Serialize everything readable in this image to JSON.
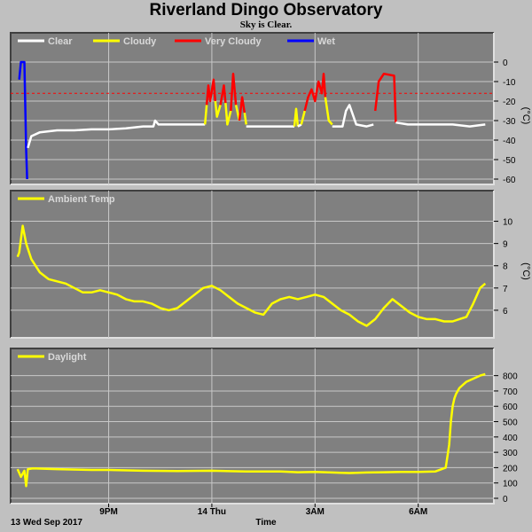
{
  "title": "Riverland Dingo Observatory",
  "subtitle": "Sky is Clear.",
  "date_label": "13 Wed Sep 2017",
  "time_label": "Time",
  "chart_data": [
    {
      "type": "line",
      "id": "sky",
      "unit": "(°C)",
      "ylim": [
        -60,
        5
      ],
      "yticks": [
        0,
        -10,
        -20,
        -30,
        -40,
        -50,
        -60
      ],
      "threshold": -16,
      "threshold_color": "#ff0000",
      "legend": [
        {
          "name": "Clear",
          "color": "#ffffff"
        },
        {
          "name": "Cloudy",
          "color": "#ffff00"
        },
        {
          "name": "Very Cloudy",
          "color": "#ff0000"
        },
        {
          "name": "Wet",
          "color": "#0000ff"
        }
      ],
      "segments": [
        {
          "status": "Wet",
          "color": "#0000ff",
          "points": [
            [
              18.4,
              -9
            ],
            [
              18.45,
              0
            ],
            [
              18.55,
              0
            ],
            [
              18.6,
              -45
            ],
            [
              18.63,
              -60
            ]
          ]
        },
        {
          "status": "Clear",
          "color": "#ffffff",
          "points": [
            [
              18.65,
              -44
            ],
            [
              18.75,
              -38
            ],
            [
              19.0,
              -36
            ],
            [
              19.5,
              -35
            ],
            [
              20.0,
              -35
            ],
            [
              20.5,
              -34.5
            ],
            [
              21.0,
              -34.5
            ],
            [
              21.5,
              -34
            ],
            [
              22.0,
              -33
            ],
            [
              22.3,
              -33
            ],
            [
              22.35,
              -30
            ],
            [
              22.45,
              -32
            ],
            [
              23.0,
              -32
            ],
            [
              23.6,
              -32
            ],
            [
              23.8,
              -32
            ]
          ]
        },
        {
          "status": "Cloudy",
          "color": "#ffff00",
          "points": [
            [
              23.8,
              -32
            ],
            [
              23.85,
              -22
            ]
          ]
        },
        {
          "status": "Very Cloudy",
          "color": "#ff0000",
          "points": [
            [
              23.85,
              -22
            ],
            [
              23.9,
              -12
            ],
            [
              23.95,
              -20
            ],
            [
              24.05,
              -9
            ],
            [
              24.1,
              -20
            ]
          ]
        },
        {
          "status": "Cloudy",
          "color": "#ffff00",
          "points": [
            [
              24.1,
              -20
            ],
            [
              24.15,
              -28
            ],
            [
              24.25,
              -22
            ]
          ]
        },
        {
          "status": "Very Cloudy",
          "color": "#ff0000",
          "points": [
            [
              24.25,
              -22
            ],
            [
              24.35,
              -12
            ],
            [
              24.4,
              -21
            ]
          ]
        },
        {
          "status": "Cloudy",
          "color": "#ffff00",
          "points": [
            [
              24.4,
              -21
            ],
            [
              24.45,
              -32
            ],
            [
              24.55,
              -25
            ]
          ]
        },
        {
          "status": "Very Cloudy",
          "color": "#ff0000",
          "points": [
            [
              24.55,
              -25
            ],
            [
              24.62,
              -6
            ],
            [
              24.7,
              -22
            ]
          ]
        },
        {
          "status": "Cloudy",
          "color": "#ffff00",
          "points": [
            [
              24.7,
              -22
            ],
            [
              24.8,
              -30
            ]
          ]
        },
        {
          "status": "Very Cloudy",
          "color": "#ff0000",
          "points": [
            [
              24.8,
              -30
            ],
            [
              24.88,
              -18
            ],
            [
              24.95,
              -26
            ]
          ]
        },
        {
          "status": "Cloudy",
          "color": "#ffff00",
          "points": [
            [
              24.95,
              -26
            ],
            [
              25.0,
              -32
            ]
          ]
        },
        {
          "status": "Clear",
          "color": "#ffffff",
          "points": [
            [
              25.0,
              -33
            ],
            [
              25.5,
              -33
            ],
            [
              26.0,
              -33
            ],
            [
              26.4,
              -33
            ]
          ]
        },
        {
          "status": "Cloudy",
          "color": "#ffff00",
          "points": [
            [
              26.4,
              -33
            ],
            [
              26.45,
              -24
            ],
            [
              26.5,
              -33
            ]
          ]
        },
        {
          "status": "Clear",
          "color": "#ffffff",
          "points": [
            [
              26.5,
              -33
            ],
            [
              26.6,
              -32
            ]
          ]
        },
        {
          "status": "Cloudy",
          "color": "#ffff00",
          "points": [
            [
              26.6,
              -32
            ],
            [
              26.7,
              -25
            ]
          ]
        },
        {
          "status": "Very Cloudy",
          "color": "#ff0000",
          "points": [
            [
              26.7,
              -25
            ],
            [
              26.8,
              -18
            ],
            [
              26.9,
              -14
            ],
            [
              27.0,
              -20
            ],
            [
              27.1,
              -10
            ],
            [
              27.2,
              -16
            ],
            [
              27.25,
              -6
            ],
            [
              27.3,
              -18
            ]
          ]
        },
        {
          "status": "Cloudy",
          "color": "#ffff00",
          "points": [
            [
              27.3,
              -18
            ],
            [
              27.4,
              -30
            ],
            [
              27.5,
              -32
            ]
          ]
        },
        {
          "status": "Clear",
          "color": "#ffffff",
          "points": [
            [
              27.5,
              -33
            ],
            [
              27.8,
              -33
            ],
            [
              27.9,
              -25
            ],
            [
              28.0,
              -22
            ],
            [
              28.2,
              -32
            ],
            [
              28.5,
              -33
            ],
            [
              28.7,
              -32
            ]
          ]
        },
        {
          "status": "Very Cloudy",
          "color": "#ff0000",
          "points": [
            [
              28.75,
              -25
            ],
            [
              28.85,
              -10
            ],
            [
              29.0,
              -6
            ],
            [
              29.3,
              -7
            ],
            [
              29.35,
              -31
            ]
          ]
        },
        {
          "status": "Clear",
          "color": "#ffffff",
          "points": [
            [
              29.35,
              -31
            ],
            [
              29.7,
              -32
            ],
            [
              30.0,
              -32
            ],
            [
              30.5,
              -32
            ],
            [
              31.0,
              -32
            ],
            [
              31.5,
              -33
            ],
            [
              31.95,
              -32
            ]
          ]
        }
      ]
    },
    {
      "type": "line",
      "id": "ambient",
      "unit": "(°C)",
      "ylim": [
        5,
        10.5
      ],
      "yticks": [
        10,
        9,
        8,
        7,
        6
      ],
      "legend": [
        {
          "name": "Ambient Temp",
          "color": "#ffff00"
        }
      ],
      "x": [
        18.35,
        18.4,
        18.5,
        18.6,
        18.75,
        19.0,
        19.25,
        19.5,
        19.75,
        20.0,
        20.25,
        20.5,
        20.75,
        21.0,
        21.25,
        21.5,
        21.75,
        22.0,
        22.25,
        22.5,
        22.75,
        23.0,
        23.25,
        23.5,
        23.75,
        24.0,
        24.25,
        24.5,
        24.75,
        25.0,
        25.25,
        25.5,
        25.75,
        26.0,
        26.25,
        26.5,
        26.75,
        27.0,
        27.25,
        27.5,
        27.75,
        28.0,
        28.25,
        28.5,
        28.75,
        29.0,
        29.25,
        29.5,
        29.75,
        30.0,
        30.25,
        30.5,
        30.75,
        31.0,
        31.2,
        31.4,
        31.6,
        31.8,
        31.95
      ],
      "y": [
        8.4,
        8.6,
        9.8,
        9.0,
        8.3,
        7.7,
        7.4,
        7.3,
        7.2,
        7.0,
        6.8,
        6.8,
        6.9,
        6.8,
        6.7,
        6.5,
        6.4,
        6.4,
        6.3,
        6.1,
        6.0,
        6.1,
        6.4,
        6.7,
        7.0,
        7.1,
        6.9,
        6.6,
        6.3,
        6.1,
        5.9,
        5.8,
        6.3,
        6.5,
        6.6,
        6.5,
        6.6,
        6.7,
        6.6,
        6.3,
        6.0,
        5.8,
        5.5,
        5.3,
        5.6,
        6.1,
        6.5,
        6.2,
        5.9,
        5.7,
        5.6,
        5.6,
        5.5,
        5.5,
        5.6,
        5.7,
        6.3,
        7.0,
        7.2
      ]
    },
    {
      "type": "line",
      "id": "daylight",
      "unit": "",
      "ylim": [
        0,
        850
      ],
      "yticks": [
        800,
        700,
        600,
        500,
        400,
        300,
        200,
        100,
        0
      ],
      "legend": [
        {
          "name": "Daylight",
          "color": "#ffff00"
        }
      ],
      "x": [
        18.35,
        18.45,
        18.55,
        18.6,
        18.65,
        18.8,
        19.5,
        20.5,
        21.0,
        22.0,
        23.0,
        24.0,
        25.0,
        26.0,
        26.5,
        27.0,
        27.5,
        28.0,
        28.5,
        29.0,
        29.5,
        30.0,
        30.5,
        30.8,
        30.9,
        30.95,
        31.0,
        31.05,
        31.1,
        31.2,
        31.4,
        31.6,
        31.8,
        31.95
      ],
      "y": [
        190,
        140,
        180,
        80,
        190,
        195,
        190,
        185,
        185,
        180,
        178,
        180,
        175,
        175,
        170,
        172,
        168,
        165,
        168,
        170,
        172,
        172,
        175,
        200,
        350,
        500,
        600,
        650,
        680,
        720,
        760,
        780,
        800,
        810
      ]
    }
  ],
  "x_axis": {
    "xlim": [
      18.15,
      32.2
    ],
    "ticks": [
      {
        "value": 21,
        "label": "9PM"
      },
      {
        "value": 24,
        "label": "14 Thu"
      },
      {
        "value": 27,
        "label": "3AM"
      },
      {
        "value": 30,
        "label": "6AM"
      }
    ]
  }
}
